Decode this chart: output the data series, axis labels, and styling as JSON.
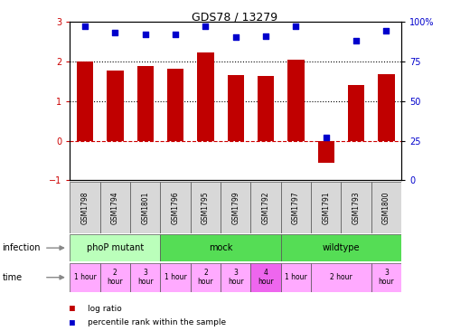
{
  "title": "GDS78 / 13279",
  "samples": [
    "GSM1798",
    "GSM1794",
    "GSM1801",
    "GSM1796",
    "GSM1795",
    "GSM1799",
    "GSM1792",
    "GSM1797",
    "GSM1791",
    "GSM1793",
    "GSM1800"
  ],
  "log_ratio": [
    2.0,
    1.77,
    1.88,
    1.8,
    2.22,
    1.65,
    1.62,
    2.05,
    -0.55,
    1.4,
    1.68
  ],
  "percentile": [
    97,
    93,
    92,
    92,
    97,
    90,
    91,
    97,
    27,
    88,
    94
  ],
  "ylim": [
    -1,
    3
  ],
  "y2lim": [
    0,
    100
  ],
  "yticks_left": [
    -1,
    0,
    1,
    2,
    3
  ],
  "yticks_right": [
    0,
    25,
    50,
    75,
    100
  ],
  "ytick_labels_right": [
    "0",
    "25",
    "50",
    "75",
    "100%"
  ],
  "hlines_dotted": [
    1,
    2
  ],
  "hline_dashed": 0,
  "bar_color": "#c00000",
  "dot_color": "#0000cc",
  "inf_groups": [
    {
      "label": "phoP mutant",
      "start": 0,
      "end": 3,
      "color": "#aaffaa"
    },
    {
      "label": "mock",
      "start": 3,
      "end": 7,
      "color": "#66dd66"
    },
    {
      "label": "wildtype",
      "start": 7,
      "end": 11,
      "color": "#66dd66"
    }
  ],
  "time_groups": [
    {
      "label": "1 hour",
      "start": 0,
      "end": 1,
      "color": "#ffaaff"
    },
    {
      "label": "2\nhour",
      "start": 1,
      "end": 2,
      "color": "#ffaaff"
    },
    {
      "label": "3\nhour",
      "start": 2,
      "end": 3,
      "color": "#ffaaff"
    },
    {
      "label": "1 hour",
      "start": 3,
      "end": 4,
      "color": "#ffaaff"
    },
    {
      "label": "2\nhour",
      "start": 4,
      "end": 5,
      "color": "#ffaaff"
    },
    {
      "label": "3\nhour",
      "start": 5,
      "end": 6,
      "color": "#ffaaff"
    },
    {
      "label": "4\nhour",
      "start": 6,
      "end": 7,
      "color": "#ee66ee"
    },
    {
      "label": "1 hour",
      "start": 7,
      "end": 8,
      "color": "#ffaaff"
    },
    {
      "label": "2 hour",
      "start": 8,
      "end": 10,
      "color": "#ffaaff"
    },
    {
      "label": "3\nhour",
      "start": 10,
      "end": 11,
      "color": "#ffaaff"
    }
  ],
  "legend_items": [
    {
      "label": "log ratio",
      "color": "#c00000"
    },
    {
      "label": "percentile rank within the sample",
      "color": "#0000cc"
    }
  ]
}
